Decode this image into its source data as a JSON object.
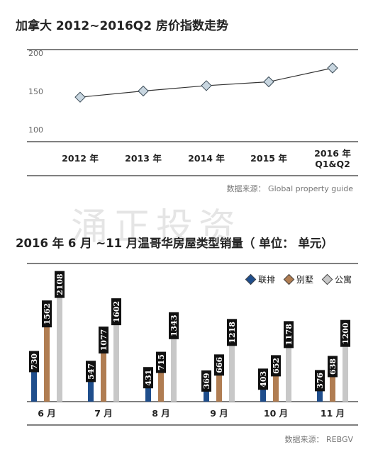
{
  "chart1": {
    "title": "加拿大 2012~2016Q2 房价指数走势",
    "source": "数据来源： Global property guide"
  },
  "chart2": {
    "title": "2016 年 6 月 ~11 月温哥华房屋类型销量（ 单位： 单元）",
    "source": "数据来源： REBGV",
    "legend": [
      "联排",
      "别墅",
      "公寓"
    ]
  },
  "watermark": "涌正投资",
  "colors": {
    "townhouse": "#1f4e8c",
    "detached": "#b07d52",
    "apartment": "#c8c8c8",
    "line": "#333333",
    "marker": "#c8d6e0"
  },
  "chart_data": [
    {
      "type": "line",
      "title": "加拿大 2012~2016Q2 房价指数走势",
      "categories": [
        "2012 年",
        "2013 年",
        "2014 年",
        "2015 年",
        "2016 年\nQ1&Q2"
      ],
      "series": [
        {
          "values": [
            148,
            156,
            163,
            168,
            186
          ]
        }
      ],
      "yticks": [
        100,
        150,
        200
      ],
      "ylim": [
        90,
        210
      ],
      "grid": false
    },
    {
      "type": "bar",
      "title": "2016 年 6 月 ~11 月温哥华房屋类型销量（ 单位： 单元）",
      "categories": [
        "6 月",
        "7 月",
        "8 月",
        "9 月",
        "10 月",
        "11 月"
      ],
      "series": [
        {
          "name": "联排",
          "values": [
            730,
            547,
            431,
            369,
            403,
            376
          ]
        },
        {
          "name": "别墅",
          "values": [
            1562,
            1077,
            715,
            666,
            652,
            638
          ]
        },
        {
          "name": "公寓",
          "values": [
            2108,
            1602,
            1343,
            1218,
            1178,
            1200
          ]
        }
      ],
      "ylim": [
        0,
        2300
      ],
      "legend_position": "top-right",
      "grid": false
    }
  ]
}
